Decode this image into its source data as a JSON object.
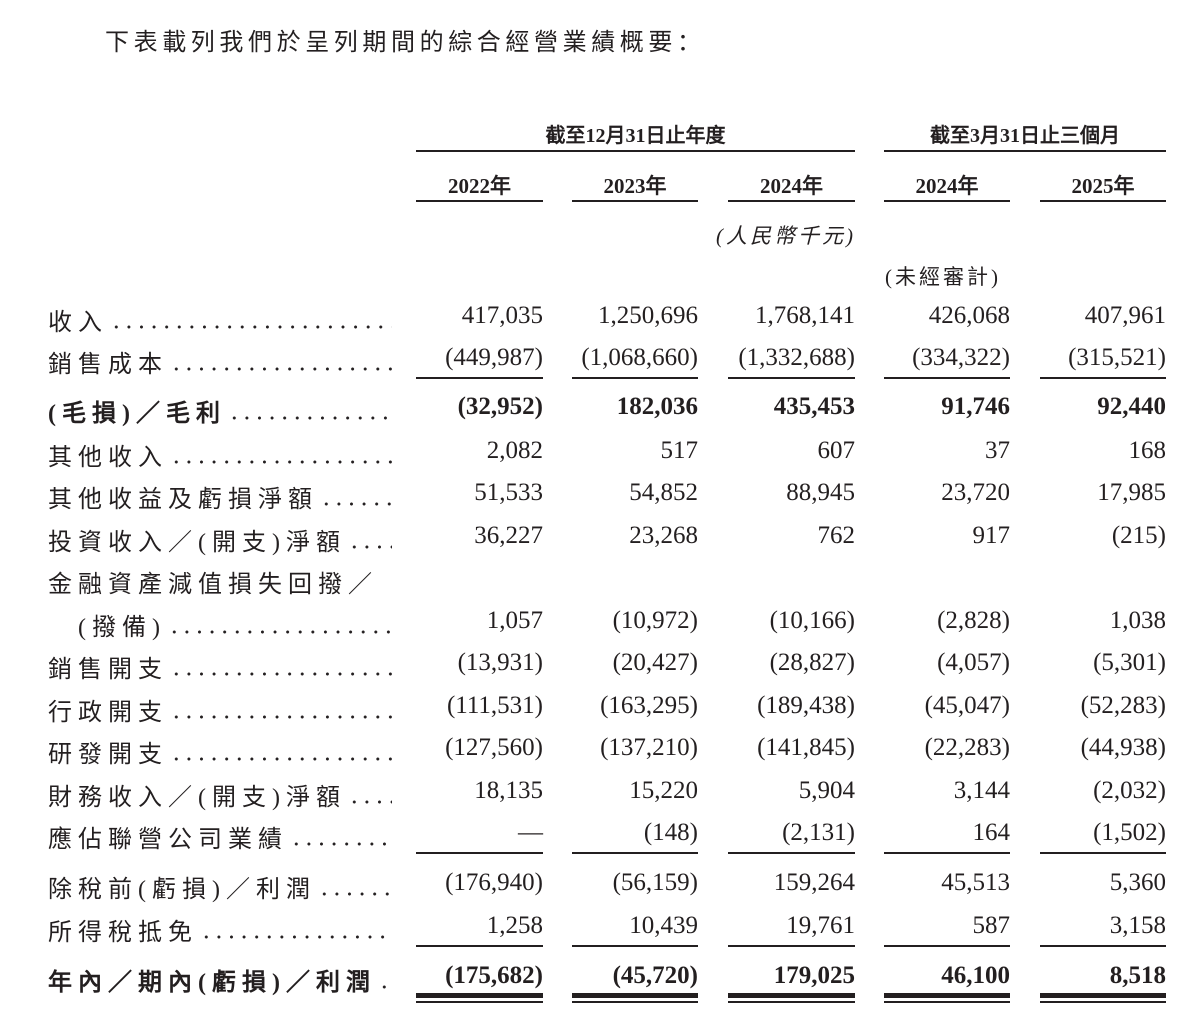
{
  "intro": "下表載列我們於呈列期間的綜合經營業績概要：",
  "headers": {
    "group_year": "截至12月31日止年度",
    "group_quarter": "截至3月31日止三個月",
    "years": [
      "2022年",
      "2023年",
      "2024年",
      "2024年",
      "2025年"
    ],
    "unit": "(人民幣千元)",
    "unaudited": "(未經審計)"
  },
  "rows": [
    {
      "label": "收入",
      "values": [
        "417,035",
        "1,250,696",
        "1,768,141",
        "426,068",
        "407,961"
      ]
    },
    {
      "label": "銷售成本",
      "values": [
        "(449,987)",
        "(1,068,660)",
        "(1,332,688)",
        "(334,322)",
        "(315,521)"
      ]
    },
    {
      "label": "(毛損)／毛利",
      "bold": true,
      "values": [
        "(32,952)",
        "182,036",
        "435,453",
        "91,746",
        "92,440"
      ]
    },
    {
      "label": "其他收入",
      "values": [
        "2,082",
        "517",
        "607",
        "37",
        "168"
      ]
    },
    {
      "label": "其他收益及虧損淨額",
      "values": [
        "51,533",
        "54,852",
        "88,945",
        "23,720",
        "17,985"
      ]
    },
    {
      "label": "投資收入／(開支)淨額",
      "values": [
        "36,227",
        "23,268",
        "762",
        "917",
        "(215)"
      ]
    },
    {
      "label": "金融資產減值損失回撥／",
      "nodots": true,
      "values": []
    },
    {
      "label": "(撥備)",
      "indent": true,
      "values": [
        "1,057",
        "(10,972)",
        "(10,166)",
        "(2,828)",
        "1,038"
      ]
    },
    {
      "label": "銷售開支",
      "values": [
        "(13,931)",
        "(20,427)",
        "(28,827)",
        "(4,057)",
        "(5,301)"
      ]
    },
    {
      "label": "行政開支",
      "values": [
        "(111,531)",
        "(163,295)",
        "(189,438)",
        "(45,047)",
        "(52,283)"
      ]
    },
    {
      "label": "研發開支",
      "values": [
        "(127,560)",
        "(137,210)",
        "(141,845)",
        "(22,283)",
        "(44,938)"
      ]
    },
    {
      "label": "財務收入／(開支)淨額",
      "values": [
        "18,135",
        "15,220",
        "5,904",
        "3,144",
        "(2,032)"
      ]
    },
    {
      "label": "應佔聯營公司業績",
      "values": [
        "—",
        "(148)",
        "(2,131)",
        "164",
        "(1,502)"
      ]
    },
    {
      "label": "除稅前(虧損)／利潤",
      "values": [
        "(176,940)",
        "(56,159)",
        "159,264",
        "45,513",
        "5,360"
      ]
    },
    {
      "label": "所得稅抵免",
      "values": [
        "1,258",
        "10,439",
        "19,761",
        "587",
        "3,158"
      ]
    },
    {
      "label": "年內／期內(虧損)／利潤",
      "bold": true,
      "values": [
        "(175,682)",
        "(45,720)",
        "179,025",
        "46,100",
        "8,518"
      ]
    }
  ]
}
